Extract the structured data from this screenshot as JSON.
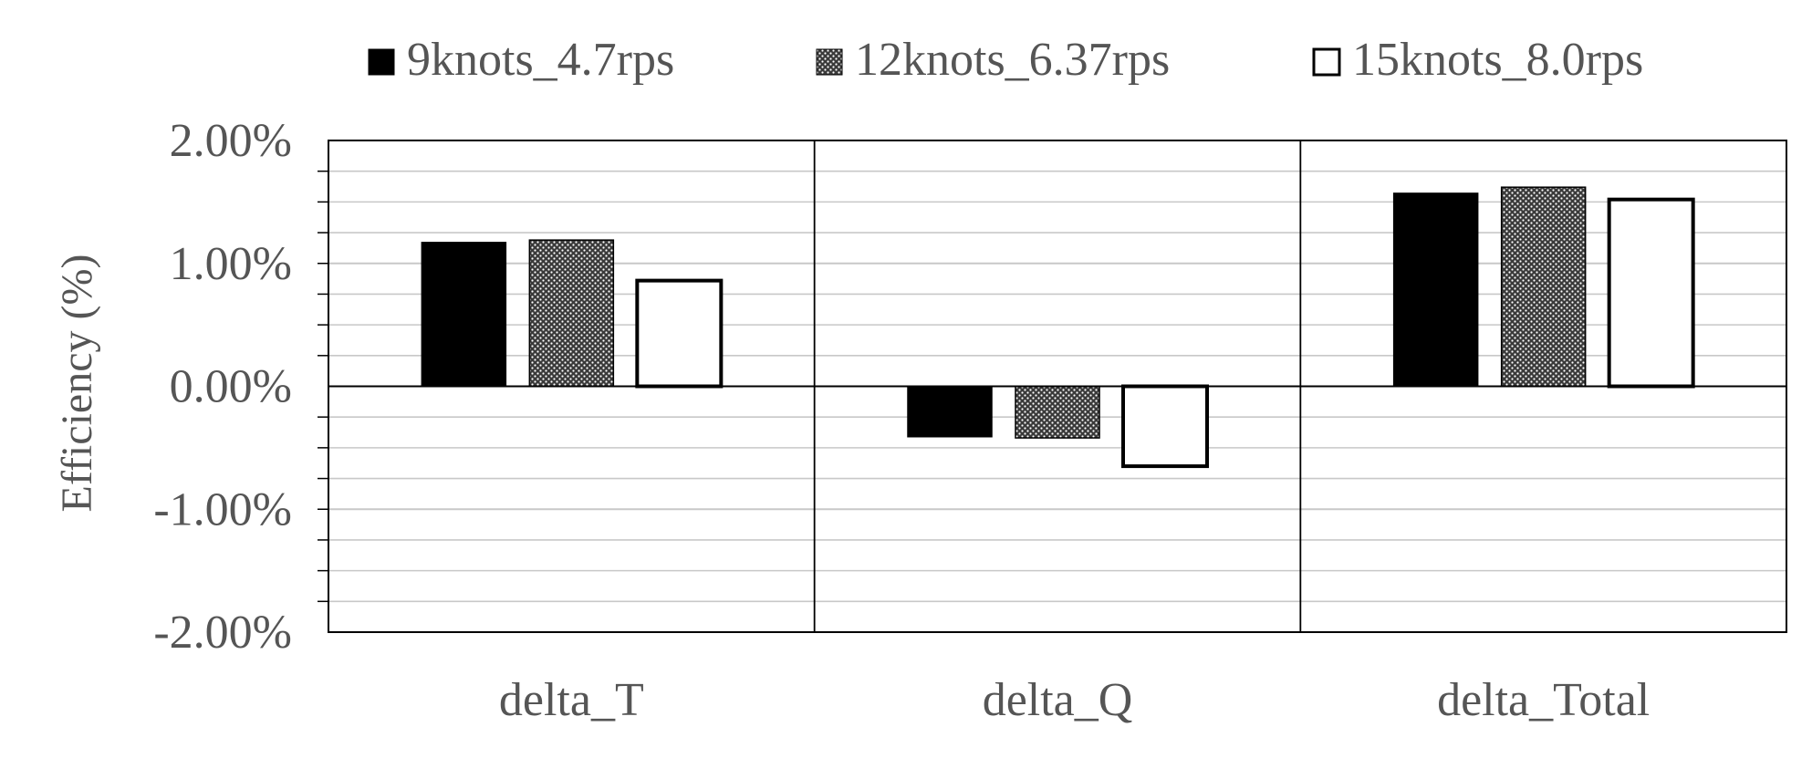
{
  "chart_data": {
    "type": "bar",
    "title": "",
    "xlabel": "",
    "ylabel": "Efficiency (%)",
    "categories": [
      "delta_T",
      "delta_Q",
      "delta_Total"
    ],
    "series": [
      {
        "name": "9knots_4.7rps",
        "values": [
          1.17,
          -0.41,
          1.57
        ],
        "fill": "solid-black"
      },
      {
        "name": "12knots_6.37rps",
        "values": [
          1.19,
          -0.42,
          1.62
        ],
        "fill": "dotted-pattern"
      },
      {
        "name": "15knots_8.0rps",
        "values": [
          0.86,
          -0.65,
          1.52
        ],
        "fill": "white-outlined"
      }
    ],
    "ylim": [
      -2.0,
      2.0
    ],
    "ytick_labels": [
      "2.00%",
      "1.00%",
      "0.00%",
      "-1.00%",
      "-2.00%"
    ],
    "ytick_values": [
      2.0,
      1.0,
      0.0,
      -1.0,
      -2.0
    ],
    "minor_gridline_step": 0.25,
    "grid": true,
    "legend_position": "top",
    "colors": {
      "bar_black": "#000000",
      "bar_white": "#ffffff",
      "gridline": "#c8c8c8",
      "frame": "#000000",
      "text": "#555555"
    }
  }
}
